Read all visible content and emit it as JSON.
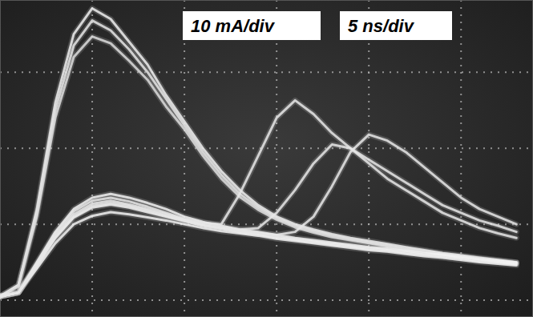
{
  "chart_data": {
    "type": "line",
    "annotations": [
      "10 mA/div",
      "5 ns/div"
    ],
    "x": [
      0,
      1,
      2,
      3,
      4,
      5,
      6,
      7,
      8,
      9,
      10,
      11,
      12,
      13,
      14,
      15,
      16,
      17,
      18,
      19,
      20,
      21,
      22,
      23,
      24,
      25,
      26,
      27,
      28
    ],
    "xlim": [
      0,
      28.9
    ],
    "xticks": [
      5,
      10,
      15,
      20,
      25
    ],
    "ylim": [
      -2.2,
      39.5
    ],
    "yticks": [
      0,
      10,
      20,
      30
    ],
    "grid": true,
    "tick_labels": false,
    "series": [
      {
        "color": "#eeeeee",
        "values": [
          0.5,
          2,
          12,
          26,
          35,
          38.4,
          37,
          34,
          31,
          27,
          23.5,
          20,
          17,
          14.5,
          12.5,
          11,
          10,
          9.3,
          8.7,
          8.2,
          7.8,
          7.4,
          7,
          6.6,
          6.2,
          5.9,
          5.6,
          5.3,
          5
        ]
      },
      {
        "color": "#e6e6e6",
        "values": [
          0.5,
          2,
          11.5,
          25,
          33.5,
          36.8,
          35.5,
          33,
          30,
          26.5,
          23,
          19.5,
          16.5,
          14,
          12.2,
          10.8,
          9.8,
          9.1,
          8.5,
          8,
          7.6,
          7.2,
          6.8,
          6.5,
          6.1,
          5.8,
          5.5,
          5.2,
          4.9
        ]
      },
      {
        "color": "#dddddd",
        "values": [
          0.5,
          1.8,
          11,
          24,
          32,
          34.7,
          33.8,
          31.5,
          29,
          25.5,
          22.5,
          19,
          16,
          13.6,
          11.9,
          10.6,
          9.6,
          8.9,
          8.3,
          7.9,
          7.5,
          7.1,
          6.7,
          6.4,
          6,
          5.7,
          5.4,
          5.1,
          4.8
        ]
      },
      {
        "color": "#f2f2f2",
        "values": [
          0.5,
          1,
          5,
          9,
          12,
          13.5,
          14,
          13.5,
          12.8,
          12,
          11,
          10.3,
          9.8,
          9.3,
          9,
          8.6,
          8.2,
          7.9,
          7.6,
          7.3,
          7,
          6.8,
          6.5,
          6.2,
          6,
          5.7,
          5.4,
          5.2,
          5
        ]
      },
      {
        "color": "#f2f2f2",
        "values": [
          0.5,
          1,
          4.6,
          8.2,
          10.9,
          12.2,
          12.6,
          12.2,
          11.6,
          11,
          10.4,
          9.8,
          9.4,
          9,
          8.7,
          8.3,
          8,
          7.7,
          7.4,
          7.1,
          6.8,
          6.6,
          6.3,
          6,
          5.8,
          5.5,
          5.2,
          5,
          4.8
        ]
      },
      {
        "color": "#f2f2f2",
        "values": [
          0.5,
          1,
          4.2,
          7.5,
          10,
          11.1,
          11.6,
          11.3,
          10.9,
          10.5,
          10,
          9.5,
          9.1,
          8.8,
          8.5,
          8.1,
          7.8,
          7.5,
          7.2,
          6.9,
          6.6,
          6.4,
          6.1,
          5.8,
          5.6,
          5.3,
          5,
          4.8,
          4.6
        ]
      },
      {
        "color": "#e8e8e8",
        "values": [
          0.5,
          1,
          4.8,
          8.8,
          11.7,
          13.1,
          13.5,
          13,
          12.3,
          11.5,
          10.7,
          10.2,
          10,
          14,
          19,
          24,
          26.3,
          24.5,
          22,
          20,
          18,
          16,
          14.5,
          13,
          11.5,
          10.5,
          9.5,
          8.8,
          8.2
        ]
      },
      {
        "color": "#e8e8e8",
        "values": [
          0.5,
          1,
          4.7,
          8.5,
          11.3,
          12.7,
          13.1,
          12.6,
          12,
          11.3,
          10.6,
          10,
          9.6,
          9.3,
          9.5,
          11.5,
          14.5,
          18,
          20.5,
          20,
          18.5,
          17,
          15.5,
          14,
          12.5,
          11.5,
          10.5,
          9.8,
          9
        ]
      },
      {
        "color": "#e8e8e8",
        "values": [
          0.5,
          1,
          4.5,
          8.3,
          11,
          12.4,
          12.8,
          12.4,
          11.8,
          11.1,
          10.5,
          9.9,
          9.5,
          9.1,
          8.8,
          8.6,
          9,
          11,
          15,
          19.5,
          21.8,
          21,
          19.5,
          17.5,
          15.5,
          13.5,
          12,
          11,
          10
        ]
      }
    ]
  }
}
